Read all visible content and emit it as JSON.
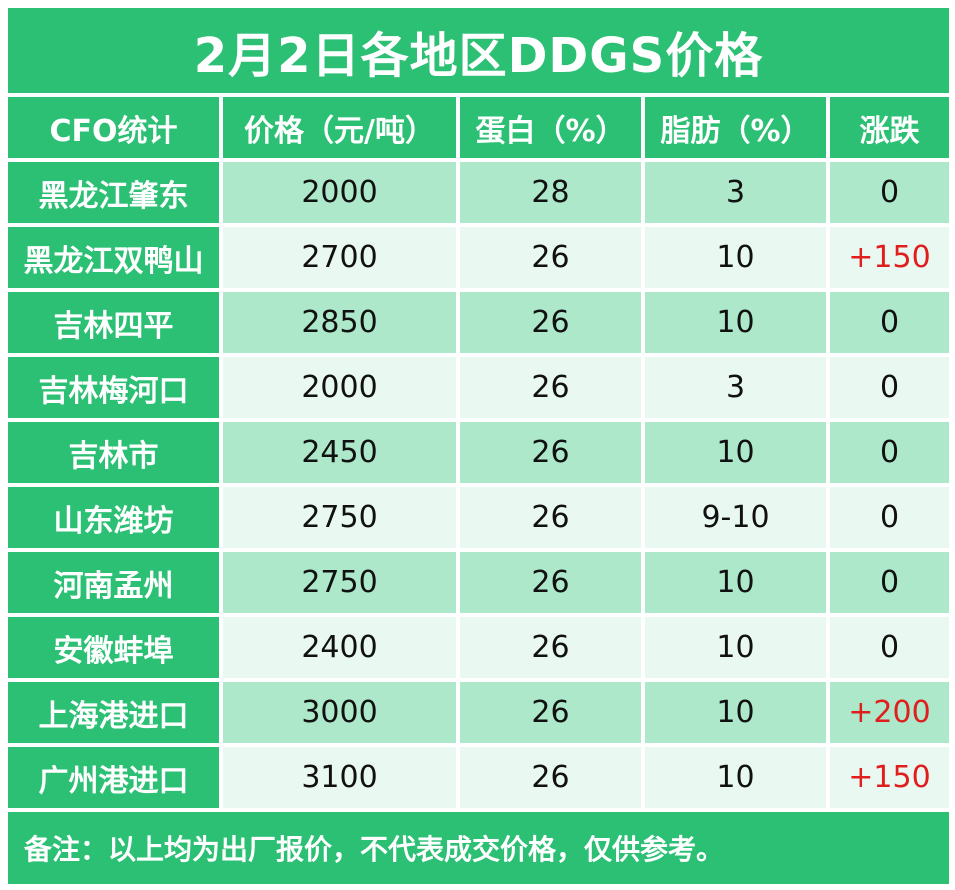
{
  "title": "2月2日各地区DDGS价格",
  "headers": [
    "CFO统计",
    "价格（元/吨）",
    "蛋白（%）",
    "脂肪（%）",
    "涨跌"
  ],
  "rows": [
    {
      "region": "黑龙江肇东",
      "price": "2000",
      "protein": "28",
      "fat": "3",
      "change": "0"
    },
    {
      "region": "黑龙江双鸭山",
      "price": "2700",
      "protein": "26",
      "fat": "10",
      "change": "+150"
    },
    {
      "region": "吉林四平",
      "price": "2850",
      "protein": "26",
      "fat": "10",
      "change": "0"
    },
    {
      "region": "吉林梅河口",
      "price": "2000",
      "protein": "26",
      "fat": "3",
      "change": "0"
    },
    {
      "region": "吉林市",
      "price": "2450",
      "protein": "26",
      "fat": "10",
      "change": "0"
    },
    {
      "region": "山东潍坊",
      "price": "2750",
      "protein": "26",
      "fat": "9-10",
      "change": "0"
    },
    {
      "region": "河南孟州",
      "price": "2750",
      "protein": "26",
      "fat": "10",
      "change": "0"
    },
    {
      "region": "安徽蚌埠",
      "price": "2400",
      "protein": "26",
      "fat": "10",
      "change": "0"
    },
    {
      "region": "上海港进口",
      "price": "3000",
      "protein": "26",
      "fat": "10",
      "change": "+200"
    },
    {
      "region": "广州港进口",
      "price": "3100",
      "protein": "26",
      "fat": "10",
      "change": "+150"
    }
  ],
  "note": "备注：以上均为出厂报价，不代表成交价格，仅供参考。",
  "colors": {
    "header_green": "#2cc075",
    "row_dark": "#ace8c9",
    "row_light": "#e9f8f0",
    "increase_red": "#e01e1e"
  }
}
